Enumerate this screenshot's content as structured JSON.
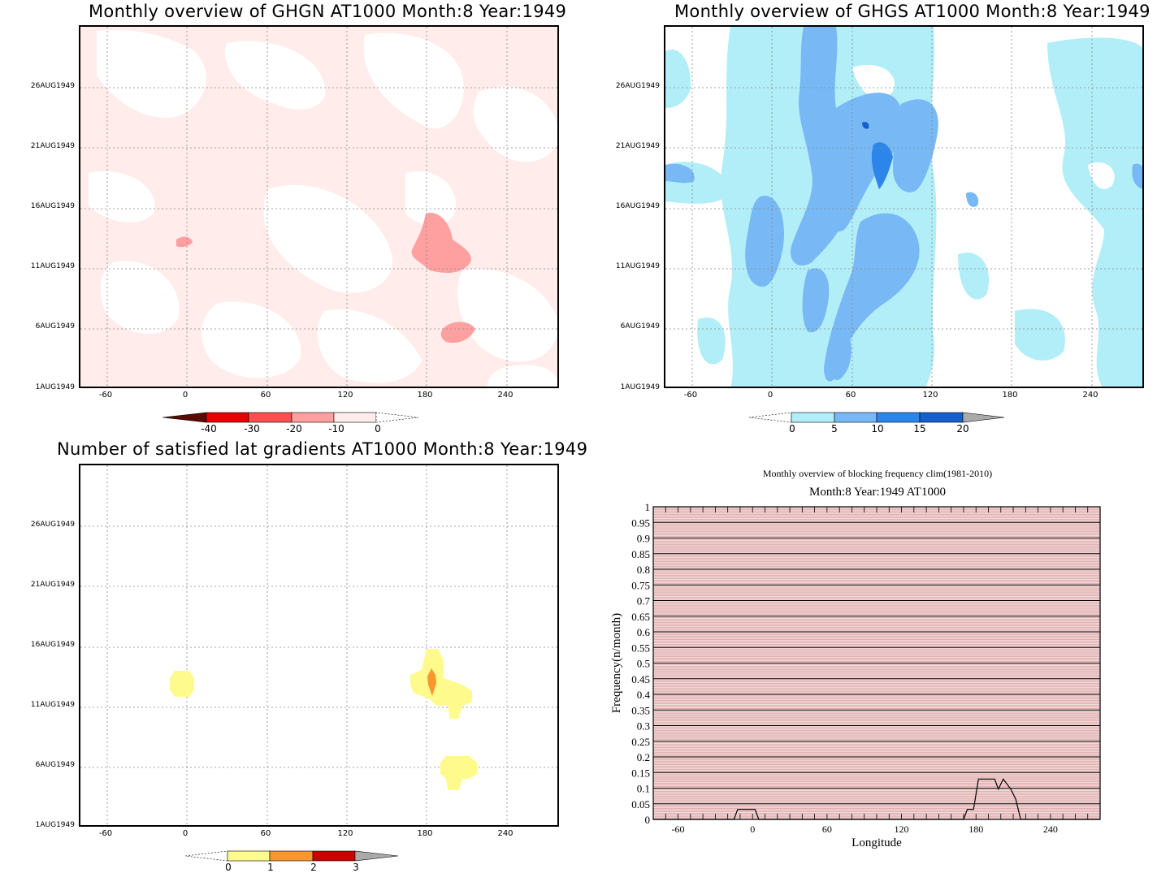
{
  "panels": {
    "ghgn": {
      "title": "Monthly overview of GHGN AT1000 Month:8 Year:1949",
      "colorbar_labels": [
        "-40",
        "-30",
        "-20",
        "-10",
        "0"
      ],
      "colors": [
        "#5a0a00",
        "#e80000",
        "#f85050",
        "#ffa0a0",
        "#ffeceb"
      ]
    },
    "ghgs": {
      "title": "Monthly overview of GHGS AT1000 Month:8 Year:1949",
      "colorbar_labels": [
        "0",
        "5",
        "10",
        "15",
        "20"
      ],
      "colors": [
        "#b2eef8",
        "#78b8f4",
        "#2c86ea",
        "#1660cc",
        "#aaaaaa"
      ]
    },
    "count": {
      "title": "Number of satisfied lat gradients AT1000 Month:8 Year:1949",
      "colorbar_labels": [
        "0",
        "1",
        "2",
        "3"
      ],
      "colors": [
        "#fffa8c",
        "#f89630",
        "#cc0000",
        "#aaaaaa"
      ]
    }
  },
  "shared_axes": {
    "y_ticks": [
      "26AUG1949",
      "21AUG1949",
      "16AUG1949",
      "11AUG1949",
      "6AUG1949",
      "1AUG1949"
    ],
    "x_ticks": [
      "-60",
      "0",
      "60",
      "120",
      "180",
      "240"
    ]
  },
  "chart_data": {
    "type": "line",
    "title": "Monthly overview of blocking frequency clim(1981-2010)",
    "subtitle": "Month:8 Year:1949  AT1000",
    "xlabel": "Longitude",
    "ylabel": "Frequency(n/month)",
    "xlim": [
      -80,
      280
    ],
    "ylim": [
      0,
      1
    ],
    "x_ticks": [
      "-60",
      "0",
      "60",
      "120",
      "180",
      "240"
    ],
    "y_ticks": [
      "0",
      "0.05",
      "0.1",
      "0.15",
      "0.2",
      "0.25",
      "0.3",
      "0.35",
      "0.4",
      "0.45",
      "0.5",
      "0.55",
      "0.6",
      "0.65",
      "0.7",
      "0.75",
      "0.8",
      "0.85",
      "0.9",
      "0.95",
      "1"
    ],
    "series": [
      {
        "x": [
          -80,
          -15,
          -12,
          2,
          5,
          170,
          173,
          178,
          182,
          195,
          198,
          202,
          208,
          212,
          216,
          280
        ],
        "values": [
          0,
          0,
          0.032,
          0.032,
          0,
          0,
          0.032,
          0.032,
          0.129,
          0.129,
          0.097,
          0.129,
          0.097,
          0.065,
          0,
          0
        ]
      }
    ],
    "grid": true,
    "background_color": "#f5d8d8"
  }
}
